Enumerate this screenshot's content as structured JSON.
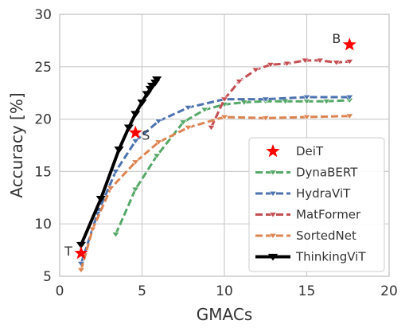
{
  "chart_data": {
    "type": "line",
    "xlabel": "GMACs",
    "ylabel": "Accuracy [%]",
    "xlim": [
      0,
      20
    ],
    "ylim": [
      5,
      30
    ],
    "xticks": [
      0,
      5,
      10,
      15,
      20
    ],
    "yticks": [
      5,
      10,
      15,
      20,
      25,
      30
    ],
    "grid": true,
    "legend_position": "lower-right",
    "series": [
      {
        "name": "DeiT",
        "kind": "scatter",
        "marker": "star",
        "color": "#ff0000",
        "points": [
          {
            "x": 1.3,
            "y": 7.2,
            "label": "T"
          },
          {
            "x": 4.6,
            "y": 18.7,
            "label": "S"
          },
          {
            "x": 17.6,
            "y": 27.1,
            "label": "B"
          }
        ]
      },
      {
        "name": "DynaBERT",
        "kind": "line",
        "dash": "dashed",
        "color": "#55a868",
        "x": [
          3.4,
          4.6,
          5.9,
          7.5,
          8.8,
          10.0,
          11.2,
          12.5,
          13.7,
          15.0,
          16.2,
          17.6
        ],
        "y": [
          9.0,
          13.3,
          16.5,
          19.7,
          20.9,
          21.4,
          21.6,
          21.7,
          21.7,
          21.7,
          21.7,
          21.8
        ]
      },
      {
        "name": "HydraViT",
        "kind": "line",
        "dash": "dashed",
        "color": "#4c72b0",
        "x": [
          1.3,
          2.3,
          3.4,
          4.6,
          6.0,
          7.8,
          10.0,
          12.5,
          15.0,
          17.6
        ],
        "y": [
          6.2,
          11.0,
          15.0,
          17.9,
          19.8,
          21.1,
          21.9,
          21.9,
          22.1,
          22.1
        ]
      },
      {
        "name": "MatFormer",
        "kind": "line",
        "dash": "dashed",
        "color": "#c44e52",
        "x": [
          9.2,
          10.0,
          10.9,
          11.9,
          12.8,
          13.8,
          14.9,
          15.8,
          16.8,
          17.6
        ],
        "y": [
          19.2,
          21.9,
          23.6,
          24.7,
          25.2,
          25.3,
          25.6,
          25.6,
          25.4,
          25.5
        ]
      },
      {
        "name": "SortedNet",
        "kind": "line",
        "dash": "dashed",
        "color": "#dd8452",
        "x": [
          1.3,
          2.0,
          3.1,
          4.6,
          6.0,
          7.8,
          10.0,
          12.5,
          15.0,
          17.6
        ],
        "y": [
          5.6,
          9.5,
          13.4,
          15.9,
          17.8,
          19.2,
          20.2,
          20.1,
          20.2,
          20.3
        ]
      },
      {
        "name": "ThinkingViT",
        "kind": "line",
        "dash": "solid",
        "color": "#000000",
        "x": [
          1.3,
          2.5,
          3.6,
          4.2,
          4.6,
          5.0,
          5.3,
          5.5,
          5.6,
          5.8,
          5.9
        ],
        "y": [
          8.0,
          12.4,
          17.1,
          19.2,
          20.5,
          21.6,
          22.4,
          22.9,
          23.2,
          23.5,
          23.8
        ]
      }
    ]
  }
}
